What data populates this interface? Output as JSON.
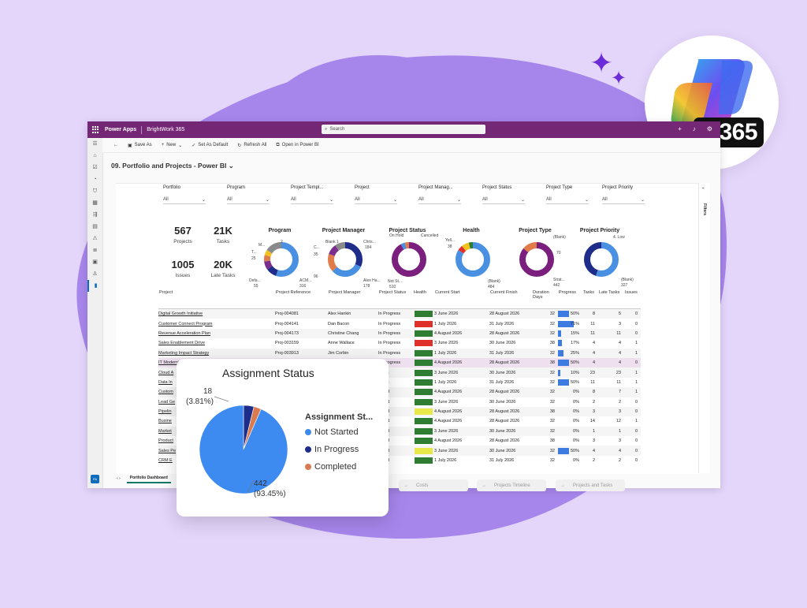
{
  "badge": {
    "label": "M365"
  },
  "topbar": {
    "app": "Power Apps",
    "env": "BrightWork 365",
    "search_placeholder": "Search"
  },
  "commands": {
    "save_as": "Save As",
    "new": "New",
    "set_default": "Set As Default",
    "refresh": "Refresh All",
    "open_pbi": "Open in Power BI"
  },
  "page": {
    "title": "09. Portfolio and Projects - Power BI"
  },
  "filters": {
    "label": "Filters"
  },
  "slicers": [
    {
      "title": "Portfolio",
      "value": "All"
    },
    {
      "title": "Program",
      "value": "All"
    },
    {
      "title": "Project Templ...",
      "value": "All"
    },
    {
      "title": "Project",
      "value": "All"
    },
    {
      "title": "Project Manag...",
      "value": "All"
    },
    {
      "title": "Project Status",
      "value": "All"
    },
    {
      "title": "Project Type",
      "value": "All"
    },
    {
      "title": "Project Priority",
      "value": "All"
    }
  ],
  "kpis": [
    {
      "value": "567",
      "label": "Projects"
    },
    {
      "value": "21K",
      "label": "Tasks"
    },
    {
      "value": "1005",
      "label": "Issues"
    },
    {
      "value": "20K",
      "label": "Late Tasks"
    }
  ],
  "donuts": [
    {
      "title": "Program",
      "labels": [
        "M...",
        "2",
        "T...",
        "25",
        "Defa...",
        "55",
        "ACM...",
        "316"
      ]
    },
    {
      "title": "Project Manager",
      "labels": [
        "Blank 1",
        "C...",
        "Chris...",
        "184",
        "35",
        "96",
        "Alex Ha...",
        "178"
      ]
    },
    {
      "title": "Project Status",
      "labels": [
        "On Hold",
        "Cancelled",
        "Not St...",
        "510"
      ]
    },
    {
      "title": "Health",
      "labels": [
        "Yell...",
        "38",
        "(Blank)",
        "484"
      ]
    },
    {
      "title": "Project Type",
      "labels": [
        "(Blank)",
        "70",
        "Strat...",
        "442"
      ]
    },
    {
      "title": "Project Priority",
      "labels": [
        "4. Low",
        "(Blank)",
        "327"
      ]
    }
  ],
  "table": {
    "headers": [
      "Project",
      "Project Reference",
      "Project Manager",
      "Project Status",
      "Health",
      "Current Start",
      "Current Finish",
      "Duration Days",
      "Progress",
      "Tasks",
      "Late Tasks",
      "Issues"
    ],
    "rows": [
      {
        "project": "Digital Growth Initiative",
        "ref": "Proj-004081",
        "pm": "Alex Hankin",
        "status": "In Progress",
        "health": "#2e7d32",
        "start": "3 June 2026",
        "finish": "28 August 2026",
        "dur": "32",
        "prog": "50%",
        "tasks": "8",
        "late": "5",
        "issues": "0"
      },
      {
        "project": "Customer Connect Program",
        "ref": "Proj-004141",
        "pm": "Dan Bacon",
        "status": "In Progress",
        "health": "#e0302a",
        "start": "1 July 2026",
        "finish": "31 July 2026",
        "dur": "32",
        "prog": "71%",
        "tasks": "11",
        "late": "3",
        "issues": "0"
      },
      {
        "project": "Revenue Acceleration Plan",
        "ref": "Proj-004173",
        "pm": "Christine Chang",
        "status": "In Progress",
        "health": "#2e7d32",
        "start": "4 August 2026",
        "finish": "28 August 2026",
        "dur": "32",
        "prog": "15%",
        "tasks": "11",
        "late": "11",
        "issues": "0"
      },
      {
        "project": "Sales Enablement Drive",
        "ref": "Proj-003159",
        "pm": "Anne Wallace",
        "status": "In Progress",
        "health": "#e0302a",
        "start": "3 June 2026",
        "finish": "30 June 2026",
        "dur": "38",
        "prog": "17%",
        "tasks": "4",
        "late": "4",
        "issues": "1"
      },
      {
        "project": "Marketing Impact Strategy",
        "ref": "Proj-003913",
        "pm": "Jim Corbin",
        "status": "In Progress",
        "health": "#2e7d32",
        "start": "1 July 2026",
        "finish": "31 July 2026",
        "dur": "32",
        "prog": "25%",
        "tasks": "4",
        "late": "4",
        "issues": "1"
      },
      {
        "project": "IT Modernization Program",
        "ref": "Proj-003846",
        "pm": "Alex Hankin",
        "status": "In Progress",
        "health": "#2e7d32",
        "start": "4 August 2026",
        "finish": "28 August 2026",
        "dur": "38",
        "prog": "50%",
        "tasks": "4",
        "late": "4",
        "issues": "0"
      },
      {
        "project": "Cloud A",
        "ref": "",
        "pm": "",
        "status": "gress",
        "health": "#2e7d32",
        "start": "3 June 2026",
        "finish": "30 June 2026",
        "dur": "32",
        "prog": "10%",
        "tasks": "23",
        "late": "23",
        "issues": "1"
      },
      {
        "project": "Data In",
        "ref": "",
        "pm": "",
        "status": "gress",
        "health": "#2e7d32",
        "start": "1 July 2026",
        "finish": "31 July 2026",
        "dur": "32",
        "prog": "50%",
        "tasks": "11",
        "late": "11",
        "issues": "1"
      },
      {
        "project": "Custom",
        "ref": "",
        "pm": "",
        "status": "tarted",
        "health": "#2e7d32",
        "start": "4 August 2026",
        "finish": "28 August 2026",
        "dur": "32",
        "prog": "0%",
        "tasks": "8",
        "late": "7",
        "issues": "1"
      },
      {
        "project": "Lead Ge",
        "ref": "",
        "pm": "",
        "status": "tarted",
        "health": "#2e7d32",
        "start": "3 June 2026",
        "finish": "30 June 2026",
        "dur": "32",
        "prog": "0%",
        "tasks": "2",
        "late": "2",
        "issues": "0"
      },
      {
        "project": "Pipelin",
        "ref": "",
        "pm": "",
        "status": "tarted",
        "health": "#e8e84a",
        "start": "4 August 2026",
        "finish": "28 August 2026",
        "dur": "38",
        "prog": "0%",
        "tasks": "3",
        "late": "3",
        "issues": "0"
      },
      {
        "project": "Busine",
        "ref": "",
        "pm": "",
        "status": "tarted",
        "health": "#2e7d32",
        "start": "4 August 2026",
        "finish": "28 August 2026",
        "dur": "32",
        "prog": "0%",
        "tasks": "14",
        "late": "12",
        "issues": "1"
      },
      {
        "project": "Market",
        "ref": "",
        "pm": "",
        "status": "tarted",
        "health": "#2e7d32",
        "start": "3 June 2026",
        "finish": "30 June 2026",
        "dur": "32",
        "prog": "0%",
        "tasks": "1",
        "late": "1",
        "issues": "0"
      },
      {
        "project": "Product",
        "ref": "",
        "pm": "",
        "status": "tarted",
        "health": "#2e7d32",
        "start": "4 August 2026",
        "finish": "28 August 2026",
        "dur": "38",
        "prog": "0%",
        "tasks": "3",
        "late": "3",
        "issues": "0"
      },
      {
        "project": "Sales Pe",
        "ref": "",
        "pm": "",
        "status": "tarted",
        "health": "#e8e84a",
        "start": "3 June 2026",
        "finish": "30 June 2026",
        "dur": "32",
        "prog": "50%",
        "tasks": "4",
        "late": "4",
        "issues": "0"
      },
      {
        "project": "CRM E",
        "ref": "",
        "pm": "",
        "status": "tarted",
        "health": "#2e7d32",
        "start": "1 July 2026",
        "finish": "31 July 2026",
        "dur": "32",
        "prog": "0%",
        "tasks": "2",
        "late": "2",
        "issues": "0"
      }
    ]
  },
  "nav_buttons": [
    "Costs",
    "Projects Timeline",
    "Projects and Tasks"
  ],
  "last_refresh": "Last Re",
  "tabs": {
    "active": "Portfolio Dashboard"
  },
  "popup": {
    "title": "Assignment Status",
    "legend_title": "Assignment St...",
    "legend": [
      {
        "label": "Not Started",
        "color": "#3d8af0"
      },
      {
        "label": "In Progress",
        "color": "#1f2d8a"
      },
      {
        "label": "Completed",
        "color": "#d97b50"
      }
    ],
    "label_small_value": "18",
    "label_small_pct": "(3.81%)",
    "label_big_value": "442",
    "label_big_pct": "(93.45%)"
  },
  "chart_data": {
    "type": "pie",
    "title": "Assignment Status",
    "categories": [
      "Not Started",
      "In Progress",
      "Completed"
    ],
    "values": [
      442,
      18,
      13
    ],
    "colors": [
      "#3d8af0",
      "#1f2d8a",
      "#d97b50"
    ]
  }
}
